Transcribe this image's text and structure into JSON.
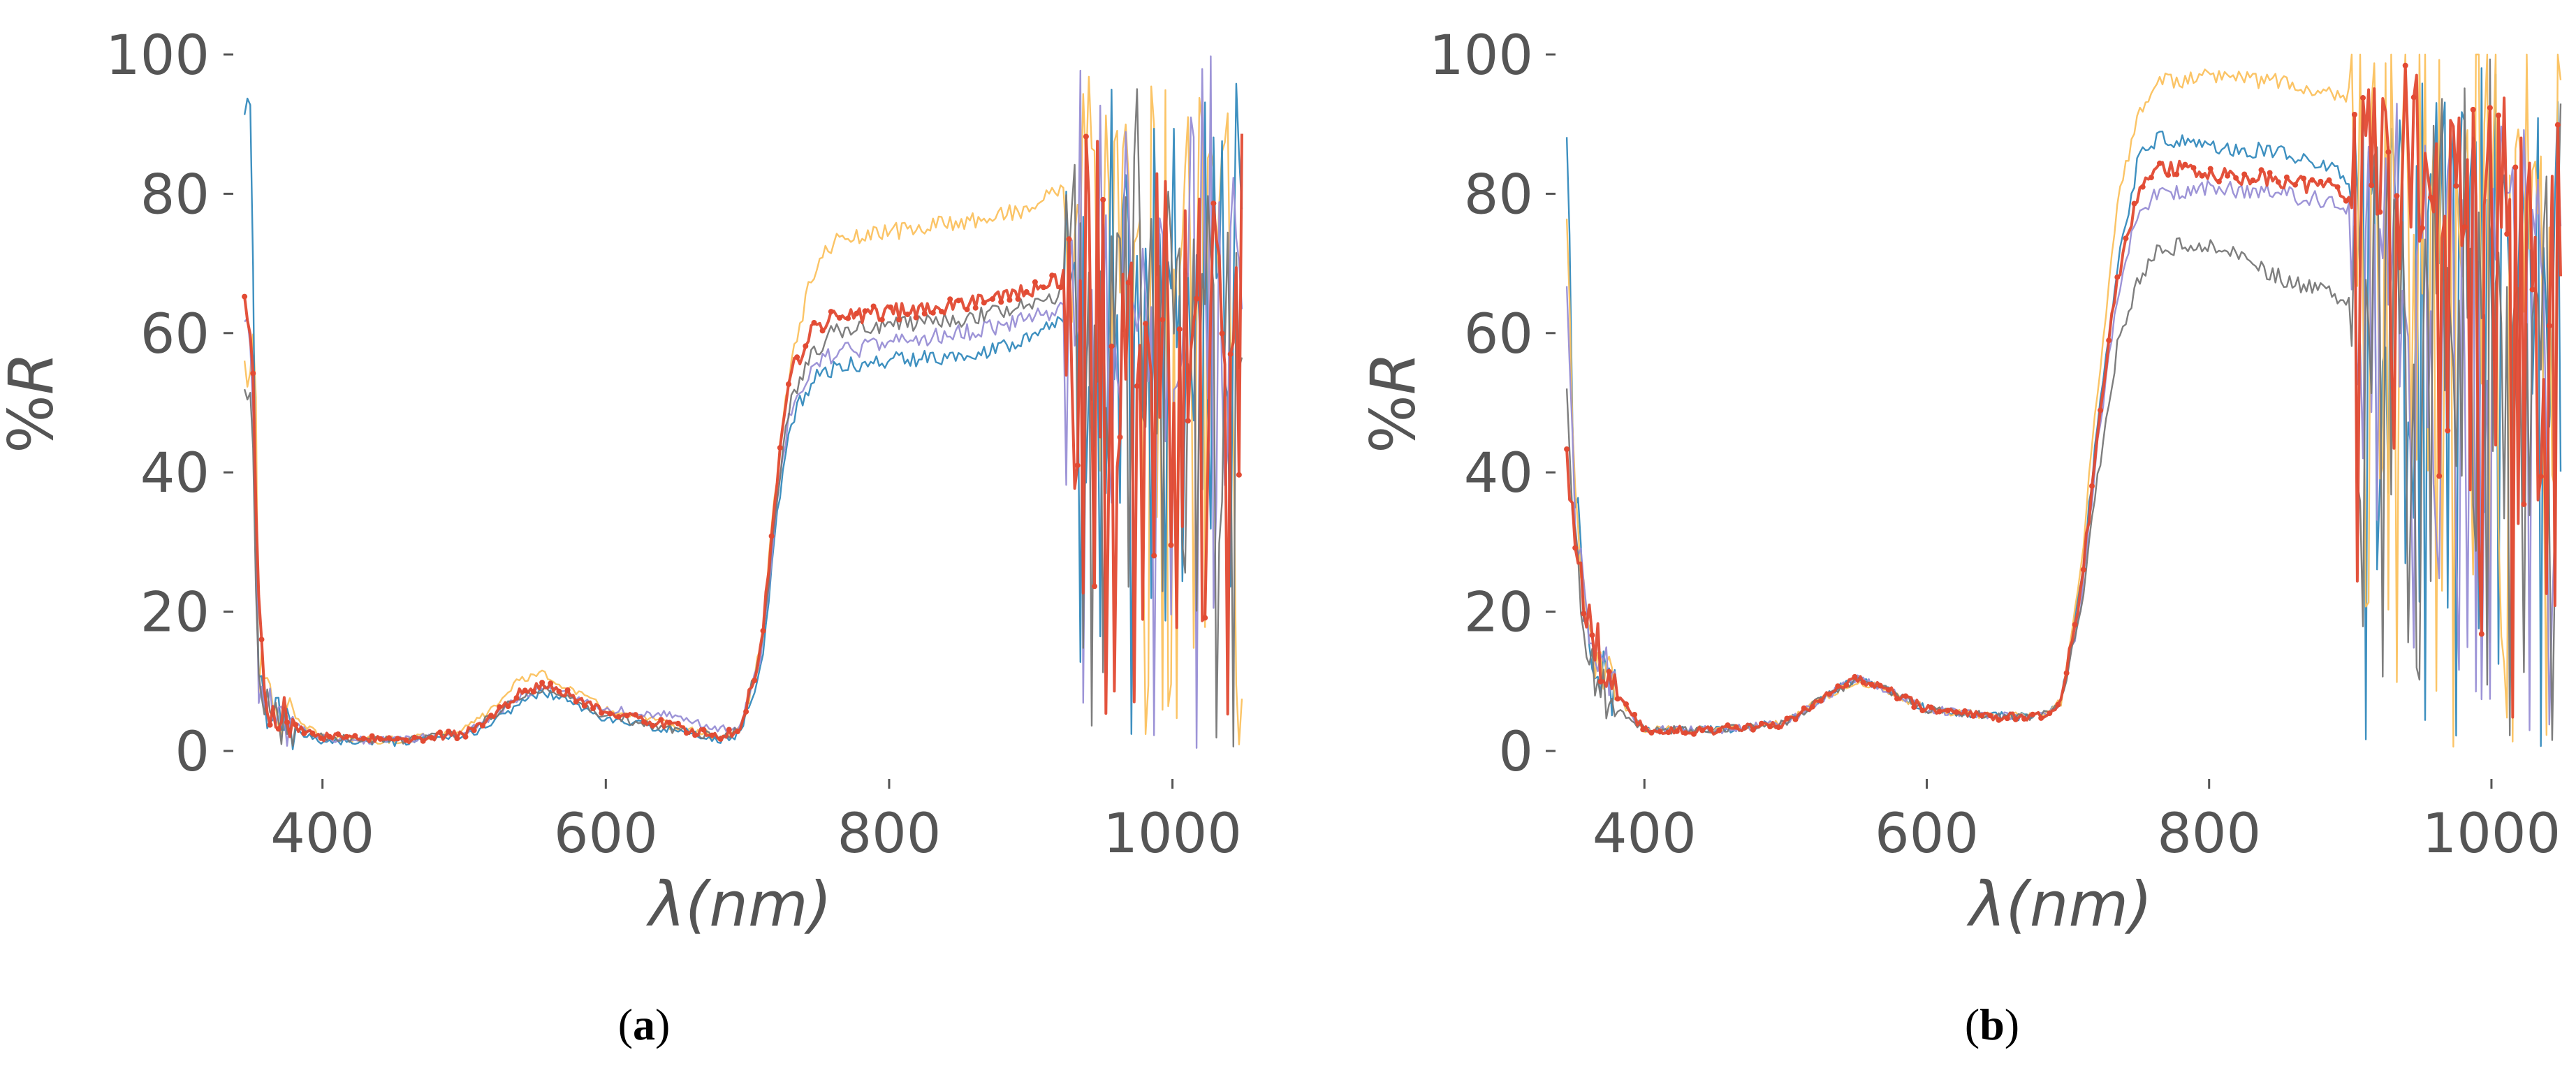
{
  "colors": {
    "red": "#e24a33",
    "blue": "#348abd",
    "purple": "#988ed5",
    "gray": "#777777",
    "yellow": "#fbc15e",
    "text": "#555555"
  },
  "chart_data": [
    {
      "type": "line",
      "caption_open": "(",
      "caption_letter": "a",
      "caption_close": ")",
      "xlabel_symbol": "λ",
      "xlabel_unit": "(nm)",
      "ylabel": "%R",
      "xlim": [
        340,
        1050
      ],
      "ylim": [
        0,
        100
      ],
      "xticks": [
        400,
        600,
        800,
        1000
      ],
      "yticks": [
        0,
        20,
        40,
        60,
        80,
        100
      ],
      "grid": false,
      "legend": "none",
      "noise_start": 925,
      "series": [
        {
          "color": "yellow",
          "points": [
            [
              350,
              55
            ],
            [
              352,
              70
            ],
            [
              355,
              12
            ],
            [
              360,
              8
            ],
            [
              375,
              5
            ],
            [
              400,
              2
            ],
            [
              450,
              1.5
            ],
            [
              500,
              3
            ],
            [
              520,
              6
            ],
            [
              540,
              10.5
            ],
            [
              555,
              11
            ],
            [
              570,
              9.5
            ],
            [
              600,
              6
            ],
            [
              650,
              3.5
            ],
            [
              680,
              2
            ],
            [
              695,
              3
            ],
            [
              710,
              15
            ],
            [
              720,
              38
            ],
            [
              730,
              55
            ],
            [
              745,
              68
            ],
            [
              760,
              73
            ],
            [
              800,
              74.5
            ],
            [
              850,
              76
            ],
            [
              880,
              77
            ],
            [
              900,
              78
            ],
            [
              915,
              80
            ],
            [
              925,
              82
            ]
          ]
        },
        {
          "color": "blue",
          "points": [
            [
              350,
              90
            ],
            [
              352,
              45
            ],
            [
              355,
              10
            ],
            [
              360,
              6
            ],
            [
              375,
              3
            ],
            [
              400,
              1.5
            ],
            [
              450,
              1.2
            ],
            [
              500,
              2
            ],
            [
              520,
              4
            ],
            [
              540,
              7
            ],
            [
              555,
              8.5
            ],
            [
              570,
              7.5
            ],
            [
              600,
              4.5
            ],
            [
              650,
              3
            ],
            [
              680,
              1.5
            ],
            [
              695,
              2.5
            ],
            [
              710,
              13
            ],
            [
              720,
              32
            ],
            [
              730,
              47
            ],
            [
              745,
              53
            ],
            [
              760,
              55
            ],
            [
              800,
              56
            ],
            [
              850,
              57
            ],
            [
              880,
              58
            ],
            [
              900,
              60
            ],
            [
              925,
              62
            ]
          ]
        },
        {
          "color": "purple",
          "points": [
            [
              350,
              60
            ],
            [
              352,
              40
            ],
            [
              355,
              10
            ],
            [
              360,
              6
            ],
            [
              375,
              4
            ],
            [
              400,
              1.8
            ],
            [
              450,
              1.5
            ],
            [
              500,
              2.5
            ],
            [
              520,
              5
            ],
            [
              540,
              8
            ],
            [
              555,
              9
            ],
            [
              570,
              8.5
            ],
            [
              600,
              6
            ],
            [
              650,
              5
            ],
            [
              680,
              3
            ],
            [
              695,
              3.5
            ],
            [
              710,
              14
            ],
            [
              720,
              34
            ],
            [
              730,
              49
            ],
            [
              745,
              55
            ],
            [
              760,
              57
            ],
            [
              800,
              58.5
            ],
            [
              850,
              60
            ],
            [
              880,
              61
            ],
            [
              900,
              62
            ],
            [
              925,
              64
            ]
          ]
        },
        {
          "color": "gray",
          "points": [
            [
              350,
              50
            ],
            [
              352,
              30
            ],
            [
              355,
              10
            ],
            [
              360,
              6
            ],
            [
              375,
              4
            ],
            [
              400,
              2
            ],
            [
              450,
              1.5
            ],
            [
              500,
              2.5
            ],
            [
              520,
              5
            ],
            [
              540,
              8
            ],
            [
              555,
              9
            ],
            [
              570,
              8
            ],
            [
              600,
              5
            ],
            [
              650,
              3
            ],
            [
              680,
              2
            ],
            [
              695,
              3
            ],
            [
              710,
              14
            ],
            [
              720,
              35
            ],
            [
              730,
              50
            ],
            [
              745,
              57
            ],
            [
              760,
              60
            ],
            [
              800,
              61
            ],
            [
              850,
              62
            ],
            [
              880,
              63
            ],
            [
              900,
              64
            ],
            [
              925,
              66
            ]
          ]
        },
        {
          "color": "red",
          "marker": true,
          "points": [
            [
              350,
              63
            ],
            [
              352,
              45
            ],
            [
              355,
              25
            ],
            [
              360,
              8
            ],
            [
              375,
              4
            ],
            [
              400,
              2
            ],
            [
              450,
              1.5
            ],
            [
              500,
              2.5
            ],
            [
              520,
              5
            ],
            [
              540,
              8.5
            ],
            [
              555,
              9.5
            ],
            [
              570,
              8.5
            ],
            [
              600,
              5.5
            ],
            [
              650,
              3.5
            ],
            [
              680,
              2
            ],
            [
              695,
              3
            ],
            [
              710,
              15
            ],
            [
              720,
              38
            ],
            [
              730,
              54
            ],
            [
              745,
              60
            ],
            [
              760,
              62
            ],
            [
              800,
              63
            ],
            [
              850,
              64
            ],
            [
              880,
              65
            ],
            [
              900,
              66
            ],
            [
              925,
              68
            ]
          ]
        }
      ]
    },
    {
      "type": "line",
      "caption_open": "(",
      "caption_letter": "b",
      "caption_close": ")",
      "xlabel_symbol": "λ",
      "xlabel_unit": "(nm)",
      "ylabel": "%R",
      "xlim": [
        340,
        1050
      ],
      "ylim": [
        0,
        100
      ],
      "xticks": [
        400,
        600,
        800,
        1000
      ],
      "yticks": [
        0,
        20,
        40,
        60,
        80,
        100
      ],
      "grid": false,
      "legend": "none",
      "noise_start": 900,
      "series": [
        {
          "color": "blue",
          "points": [
            [
              345,
              92
            ],
            [
              350,
              40
            ],
            [
              360,
              15
            ],
            [
              380,
              8
            ],
            [
              400,
              3
            ],
            [
              450,
              3
            ],
            [
              500,
              4
            ],
            [
              530,
              8
            ],
            [
              550,
              10.5
            ],
            [
              570,
              9
            ],
            [
              600,
              6
            ],
            [
              650,
              5
            ],
            [
              680,
              5
            ],
            [
              695,
              7
            ],
            [
              710,
              25
            ],
            [
              720,
              45
            ],
            [
              735,
              70
            ],
            [
              750,
              85
            ],
            [
              765,
              88
            ],
            [
              800,
              87
            ],
            [
              850,
              86
            ],
            [
              880,
              84
            ],
            [
              900,
              82
            ]
          ]
        },
        {
          "color": "yellow",
          "points": [
            [
              345,
              80
            ],
            [
              350,
              38
            ],
            [
              360,
              15
            ],
            [
              380,
              8
            ],
            [
              400,
              3
            ],
            [
              450,
              3
            ],
            [
              500,
              4
            ],
            [
              530,
              8
            ],
            [
              550,
              10
            ],
            [
              570,
              9
            ],
            [
              600,
              6
            ],
            [
              650,
              5
            ],
            [
              680,
              5
            ],
            [
              695,
              7
            ],
            [
              710,
              28
            ],
            [
              720,
              50
            ],
            [
              735,
              78
            ],
            [
              750,
              92
            ],
            [
              765,
              96
            ],
            [
              800,
              97
            ],
            [
              850,
              96
            ],
            [
              880,
              95
            ],
            [
              900,
              94
            ]
          ]
        },
        {
          "color": "purple",
          "points": [
            [
              345,
              70
            ],
            [
              350,
              35
            ],
            [
              360,
              18
            ],
            [
              380,
              8
            ],
            [
              400,
              3
            ],
            [
              450,
              3
            ],
            [
              500,
              4
            ],
            [
              530,
              8
            ],
            [
              550,
              10.5
            ],
            [
              570,
              9
            ],
            [
              600,
              6
            ],
            [
              650,
              5
            ],
            [
              680,
              5
            ],
            [
              695,
              7
            ],
            [
              710,
              22
            ],
            [
              720,
              42
            ],
            [
              735,
              65
            ],
            [
              750,
              78
            ],
            [
              765,
              80
            ],
            [
              800,
              81
            ],
            [
              850,
              80
            ],
            [
              880,
              79
            ],
            [
              900,
              78
            ]
          ]
        },
        {
          "color": "gray",
          "points": [
            [
              345,
              55
            ],
            [
              350,
              30
            ],
            [
              360,
              12
            ],
            [
              380,
              6
            ],
            [
              400,
              3
            ],
            [
              450,
              3
            ],
            [
              500,
              4
            ],
            [
              530,
              8
            ],
            [
              550,
              10
            ],
            [
              570,
              9
            ],
            [
              600,
              6
            ],
            [
              650,
              5
            ],
            [
              680,
              5
            ],
            [
              695,
              7
            ],
            [
              710,
              20
            ],
            [
              720,
              38
            ],
            [
              735,
              58
            ],
            [
              750,
              68
            ],
            [
              765,
              72
            ],
            [
              800,
              73
            ],
            [
              850,
              68
            ],
            [
              880,
              66
            ],
            [
              900,
              65
            ]
          ]
        },
        {
          "color": "red",
          "marker": true,
          "points": [
            [
              345,
              46
            ],
            [
              350,
              30
            ],
            [
              360,
              18
            ],
            [
              380,
              8
            ],
            [
              400,
              3
            ],
            [
              450,
              3
            ],
            [
              500,
              4
            ],
            [
              530,
              8
            ],
            [
              550,
              10.5
            ],
            [
              570,
              9
            ],
            [
              600,
              6
            ],
            [
              650,
              5
            ],
            [
              680,
              5
            ],
            [
              695,
              7
            ],
            [
              710,
              24
            ],
            [
              720,
              44
            ],
            [
              735,
              68
            ],
            [
              750,
              80
            ],
            [
              765,
              84
            ],
            [
              800,
              83
            ],
            [
              850,
              82
            ],
            [
              880,
              81
            ],
            [
              900,
              80
            ]
          ]
        }
      ]
    }
  ]
}
